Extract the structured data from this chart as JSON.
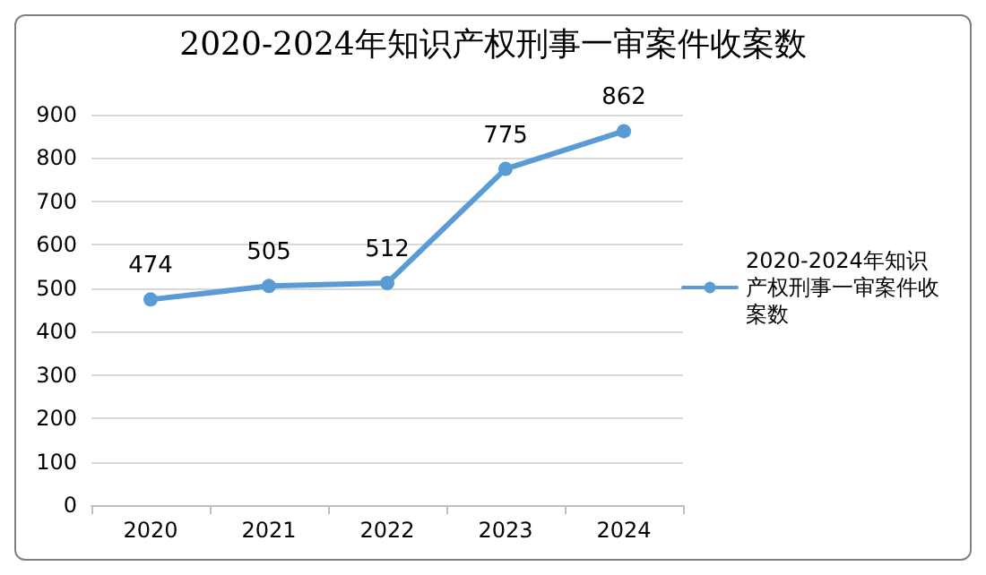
{
  "chart_data": {
    "type": "line",
    "title": "2020-2024年知识产权刑事一审案件收案数",
    "categories": [
      "2020",
      "2021",
      "2022",
      "2023",
      "2024"
    ],
    "series": [
      {
        "name": "2020-2024年知识产权刑事一审案件收案数",
        "color": "#5b9bd5",
        "values": [
          474,
          505,
          512,
          775,
          862
        ]
      }
    ],
    "ylim": [
      0,
      900
    ],
    "yticks": [
      0,
      100,
      200,
      300,
      400,
      500,
      600,
      700,
      800,
      900
    ],
    "grid": "y",
    "legend": "right",
    "marker": "circle",
    "line_style": "solid",
    "data_labels": true
  }
}
